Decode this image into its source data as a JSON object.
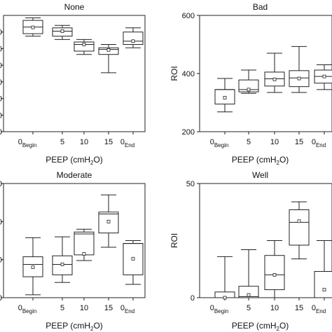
{
  "chart_data": [
    {
      "type": "box",
      "title": "None",
      "xlabel": "PEEP (cmH2O)",
      "ylabel": "",
      "ylim": [
        0,
        700
      ],
      "yticks": [
        0,
        100,
        200,
        300,
        400,
        500,
        600
      ],
      "ytick_labels": [
        "00",
        "00",
        "00",
        "00",
        "00",
        "00",
        "00"
      ],
      "categories": [
        {
          "main": "0",
          "sub": "Begin"
        },
        {
          "main": "5",
          "sub": ""
        },
        {
          "main": "10",
          "sub": ""
        },
        {
          "main": "15",
          "sub": ""
        },
        {
          "main": "0",
          "sub": "End"
        }
      ],
      "boxes": [
        {
          "whisker_low": 575,
          "q1": 590,
          "median": 630,
          "mean": 628,
          "q3": 670,
          "whisker_high": 685
        },
        {
          "whisker_low": 555,
          "q1": 575,
          "median": 605,
          "mean": 605,
          "q3": 625,
          "whisker_high": 640
        },
        {
          "whisker_low": 465,
          "q1": 485,
          "median": 525,
          "mean": 525,
          "q3": 540,
          "whisker_high": 555
        },
        {
          "whisker_low": 355,
          "q1": 465,
          "median": 495,
          "mean": 492,
          "q3": 505,
          "whisker_high": 525
        },
        {
          "whisker_low": 505,
          "q1": 525,
          "median": 545,
          "mean": 545,
          "q3": 600,
          "whisker_high": 625
        }
      ]
    },
    {
      "type": "box",
      "title": "Bad",
      "xlabel": "PEEP (cmH2O)",
      "ylabel": "ROI",
      "ylim": [
        200,
        600
      ],
      "yticks": [
        200,
        400,
        600
      ],
      "ytick_labels": [
        "200",
        "400",
        "600"
      ],
      "categories": [
        {
          "main": "0",
          "sub": "Begin"
        },
        {
          "main": "5",
          "sub": ""
        },
        {
          "main": "10",
          "sub": ""
        },
        {
          "main": "15",
          "sub": ""
        },
        {
          "main": "0",
          "sub": "End"
        }
      ],
      "boxes": [
        {
          "whisker_low": 268,
          "q1": 295,
          "median": 345,
          "mean": 317,
          "q3": 345,
          "whisker_high": 383
        },
        {
          "whisker_low": 332,
          "q1": 337,
          "median": 345,
          "mean": 345,
          "q3": 378,
          "whisker_high": 412
        },
        {
          "whisker_low": 335,
          "q1": 357,
          "median": 382,
          "mean": 380,
          "q3": 405,
          "whisker_high": 470
        },
        {
          "whisker_low": 335,
          "q1": 355,
          "median": 385,
          "mean": 383,
          "q3": 410,
          "whisker_high": 493
        },
        {
          "whisker_low": 345,
          "q1": 367,
          "median": 390,
          "mean": 390,
          "q3": 412,
          "whisker_high": 430
        }
      ]
    },
    {
      "type": "box",
      "title": "Moderate",
      "xlabel": "PEEP (cmH2O)",
      "ylabel": "",
      "ylim": [
        0,
        600
      ],
      "yticks": [
        0,
        200,
        400,
        600
      ],
      "ytick_labels": [
        "00",
        "00",
        "00",
        "00"
      ],
      "categories": [
        {
          "main": "0",
          "sub": "Begin"
        },
        {
          "main": "5",
          "sub": ""
        },
        {
          "main": "10",
          "sub": ""
        },
        {
          "main": "15",
          "sub": ""
        },
        {
          "main": "0",
          "sub": "End"
        }
      ],
      "boxes": [
        {
          "whisker_low": 15,
          "q1": 110,
          "median": 175,
          "mean": 160,
          "q3": 215,
          "whisker_high": 315
        },
        {
          "whisker_low": 80,
          "q1": 120,
          "median": 175,
          "mean": 175,
          "q3": 220,
          "whisker_high": 320
        },
        {
          "whisker_low": 195,
          "q1": 225,
          "median": 335,
          "mean": 230,
          "q3": 345,
          "whisker_high": 360
        },
        {
          "whisker_low": 265,
          "q1": 340,
          "median": 440,
          "mean": 400,
          "q3": 450,
          "whisker_high": 540
        },
        {
          "whisker_low": 70,
          "q1": 120,
          "median": 285,
          "mean": 205,
          "q3": 285,
          "whisker_high": 300
        }
      ]
    },
    {
      "type": "box",
      "title": "Well",
      "xlabel": "PEEP (cmH2O)",
      "ylabel": "ROI",
      "ylim": [
        0,
        50
      ],
      "yticks": [
        0,
        50
      ],
      "ytick_labels": [
        "0",
        "50"
      ],
      "categories": [
        {
          "main": "0",
          "sub": "Begin"
        },
        {
          "main": "5",
          "sub": ""
        },
        {
          "main": "10",
          "sub": ""
        },
        {
          "main": "15",
          "sub": ""
        },
        {
          "main": "0",
          "sub": "End"
        }
      ],
      "boxes": [
        {
          "whisker_low": 0,
          "q1": 0,
          "median": 0,
          "mean": 0,
          "q3": 2.5,
          "whisker_high": 18
        },
        {
          "whisker_low": 0,
          "q1": 0,
          "median": 0.5,
          "mean": 1.2,
          "q3": 5,
          "whisker_high": 21
        },
        {
          "whisker_low": 0,
          "q1": 3.5,
          "median": 10,
          "mean": 10,
          "q3": 18.5,
          "whisker_high": 25
        },
        {
          "whisker_low": 17,
          "q1": 23,
          "median": 33,
          "mean": 33.5,
          "q3": 38.5,
          "whisker_high": 42
        },
        {
          "whisker_low": 0,
          "q1": 0,
          "median": 0,
          "mean": 3.5,
          "q3": 11.5,
          "whisker_high": 25
        }
      ]
    }
  ]
}
